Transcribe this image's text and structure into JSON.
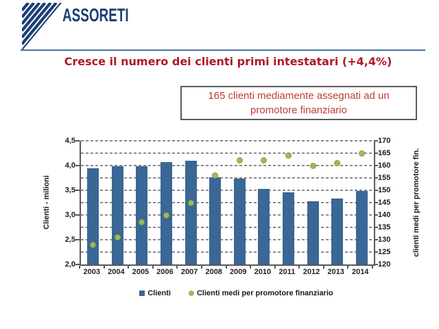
{
  "header": {
    "logo_text": "ASSORETI",
    "title": "Cresce il numero dei clienti primi intestatari (+4,4%)"
  },
  "infobox": {
    "text": "165 clienti mediamente assegnati ad un promotore finanziario"
  },
  "chart_data": {
    "type": "combo",
    "categories": [
      "2003",
      "2004",
      "2005",
      "2006",
      "2007",
      "2008",
      "2009",
      "2010",
      "2011",
      "2012",
      "2013",
      "2014"
    ],
    "series": [
      {
        "name": "Clienti",
        "type": "bar",
        "axis": "left",
        "color": "#3A6795",
        "values": [
          3.94,
          3.98,
          3.99,
          4.07,
          4.1,
          3.76,
          3.73,
          3.53,
          3.46,
          3.28,
          3.33,
          3.48
        ]
      },
      {
        "name": "Clienti medi per promotore finanziario",
        "type": "scatter",
        "axis": "right",
        "color": "#9BBB59",
        "edge_color": "#7E9E43",
        "values": [
          128,
          131,
          137,
          140,
          145,
          156,
          162,
          162,
          164,
          160,
          161,
          165
        ]
      }
    ],
    "left_axis": {
      "title": "Clienti - milioni",
      "min": 2.0,
      "max": 4.5,
      "tick_values": [
        2.0,
        2.5,
        3.0,
        3.5,
        4.0,
        4.5
      ],
      "tick_labels": [
        "2,0",
        "2,5",
        "3,0",
        "3,5",
        "4,0",
        "4,5"
      ]
    },
    "right_axis": {
      "title": "clienti medi per promotore fin.",
      "min": 120,
      "max": 170,
      "tick_values": [
        120,
        125,
        130,
        135,
        140,
        145,
        150,
        155,
        160,
        165,
        170
      ],
      "tick_labels": [
        "120",
        "125",
        "130",
        "135",
        "140",
        "145",
        "150",
        "155",
        "160",
        "165",
        "170"
      ]
    },
    "gridlines": {
      "step": 0.25,
      "style": "dashed",
      "color": "#8a8a8a"
    },
    "legend_position": "bottom"
  },
  "colors": {
    "logo": "#1C3E75",
    "rule": "#4470A3",
    "title": "#B01828",
    "infobox_text": "#C03C38",
    "infobox_border": "#58595B",
    "axis_line": "#595959"
  }
}
